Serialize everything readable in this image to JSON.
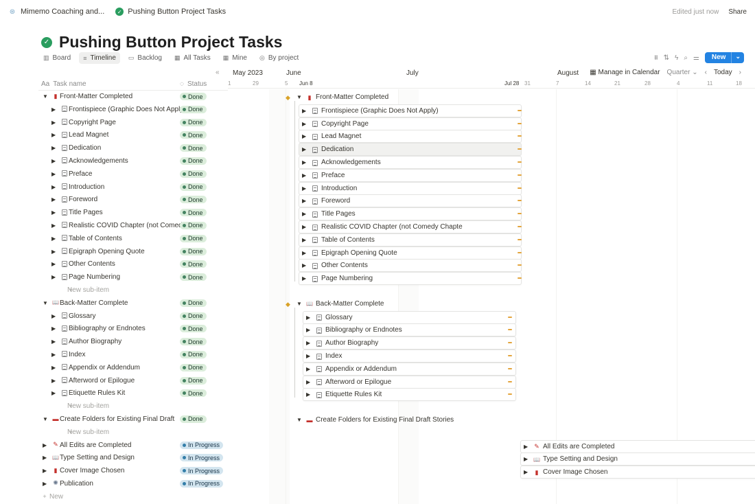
{
  "breadcrumbs": [
    {
      "label": "Mimemo Coaching and...",
      "icon": "workspace-icon"
    },
    {
      "label": "Pushing Button Project Tasks",
      "icon": "check-circle-icon"
    }
  ],
  "header": {
    "edited": "Edited just now",
    "share": "Share"
  },
  "page": {
    "title": "Pushing Button Project Tasks"
  },
  "views": [
    {
      "label": "Board",
      "icon": "board-icon"
    },
    {
      "label": "Timeline",
      "icon": "timeline-icon",
      "active": true
    },
    {
      "label": "Backlog",
      "icon": "backlog-icon"
    },
    {
      "label": "All Tasks",
      "icon": "table-icon"
    },
    {
      "label": "Mine",
      "icon": "table-icon"
    },
    {
      "label": "By project",
      "icon": "project-icon"
    }
  ],
  "toolbar": {
    "new_label": "New"
  },
  "table": {
    "col_name": "Task name",
    "col_status": "Status",
    "rows": [
      {
        "level": 0,
        "toggle": "▼",
        "icon": "book-red",
        "name": "Front-Matter Completed",
        "status": "Done"
      },
      {
        "level": 1,
        "toggle": "▶",
        "icon": "page",
        "name": "Frontispiece (Graphic Does Not Apply)",
        "status": "Done"
      },
      {
        "level": 1,
        "toggle": "▶",
        "icon": "page",
        "name": "Copyright Page",
        "status": "Done"
      },
      {
        "level": 1,
        "toggle": "▶",
        "icon": "page",
        "name": "Lead Magnet",
        "status": "Done"
      },
      {
        "level": 1,
        "toggle": "▶",
        "icon": "page",
        "name": "Dedication",
        "status": "Done"
      },
      {
        "level": 1,
        "toggle": "▶",
        "icon": "page",
        "name": "Acknowledgements",
        "status": "Done"
      },
      {
        "level": 1,
        "toggle": "▶",
        "icon": "page",
        "name": "Preface",
        "status": "Done"
      },
      {
        "level": 1,
        "toggle": "▶",
        "icon": "page",
        "name": "Introduction",
        "status": "Done"
      },
      {
        "level": 1,
        "toggle": "▶",
        "icon": "page",
        "name": "Foreword",
        "status": "Done"
      },
      {
        "level": 1,
        "toggle": "▶",
        "icon": "page",
        "name": "Title Pages",
        "status": "Done"
      },
      {
        "level": 1,
        "toggle": "▶",
        "icon": "page",
        "name": "Realistic COVID Chapter (not Comedy Chapte",
        "status": "Done"
      },
      {
        "level": 1,
        "toggle": "▶",
        "icon": "page",
        "name": "Table of Contents",
        "status": "Done"
      },
      {
        "level": 1,
        "toggle": "▶",
        "icon": "page",
        "name": "Epigraph Opening Quote",
        "status": "Done"
      },
      {
        "level": 1,
        "toggle": "▶",
        "icon": "page",
        "name": "Other Contents",
        "status": "Done"
      },
      {
        "level": 1,
        "toggle": "▶",
        "icon": "page",
        "name": "Page Numbering",
        "status": "Done"
      },
      {
        "level": 1,
        "toggle": "",
        "icon": "plus",
        "name": "New sub-item",
        "status": "",
        "kind": "new-sub"
      },
      {
        "level": 0,
        "toggle": "▼",
        "icon": "book-open-red",
        "name": "Back-Matter Complete",
        "status": "Done"
      },
      {
        "level": 1,
        "toggle": "▶",
        "icon": "page",
        "name": "Glossary",
        "status": "Done"
      },
      {
        "level": 1,
        "toggle": "▶",
        "icon": "page",
        "name": "Bibliography or Endnotes",
        "status": "Done"
      },
      {
        "level": 1,
        "toggle": "▶",
        "icon": "page",
        "name": "Author Biography",
        "status": "Done"
      },
      {
        "level": 1,
        "toggle": "▶",
        "icon": "page",
        "name": "Index",
        "status": "Done"
      },
      {
        "level": 1,
        "toggle": "▶",
        "icon": "page",
        "name": "Appendix or Addendum",
        "status": "Done"
      },
      {
        "level": 1,
        "toggle": "▶",
        "icon": "page",
        "name": "Afterword or Epilogue",
        "status": "Done"
      },
      {
        "level": 1,
        "toggle": "▶",
        "icon": "page",
        "name": "Etiquette Rules Kit",
        "status": "Done"
      },
      {
        "level": 1,
        "toggle": "",
        "icon": "plus",
        "name": "New sub-item",
        "status": "",
        "kind": "new-sub"
      },
      {
        "level": 0,
        "toggle": "▼",
        "icon": "folder-red",
        "name": "Create Folders for Existing Final Draft Stories",
        "status": "Done"
      },
      {
        "level": 1,
        "toggle": "",
        "icon": "plus",
        "name": "New sub-item",
        "status": "",
        "kind": "new-sub"
      },
      {
        "level": 0,
        "toggle": "▶",
        "icon": "pencil-red",
        "name": "All Edits are Completed",
        "status": "In Progress"
      },
      {
        "level": 0,
        "toggle": "▶",
        "icon": "book-open-red",
        "name": "Type Setting and Design",
        "status": "In Progress"
      },
      {
        "level": 0,
        "toggle": "▶",
        "icon": "book-red",
        "name": "Cover Image Chosen",
        "status": "In Progress"
      },
      {
        "level": 0,
        "toggle": "▶",
        "icon": "party-icon",
        "name": "Publication",
        "status": "In Progress"
      },
      {
        "level": 0,
        "toggle": "",
        "icon": "plus",
        "name": "New",
        "status": "",
        "kind": "new-top"
      }
    ]
  },
  "timeline": {
    "months": [
      "May 2023",
      "June",
      "July",
      "August"
    ],
    "days": [
      "1",
      "29",
      "5",
      "Jun 8",
      "Jul 28",
      "31",
      "7",
      "14",
      "21",
      "28",
      "4",
      "11",
      "18"
    ],
    "manage_label": "Manage in Calendar",
    "range_label": "Quarter",
    "today_label": "Today",
    "colors": {
      "done": "#dbeddb",
      "in_progress": "#d3e5ef",
      "accent": "#2383e2",
      "dependency": "#e3a43b"
    }
  }
}
